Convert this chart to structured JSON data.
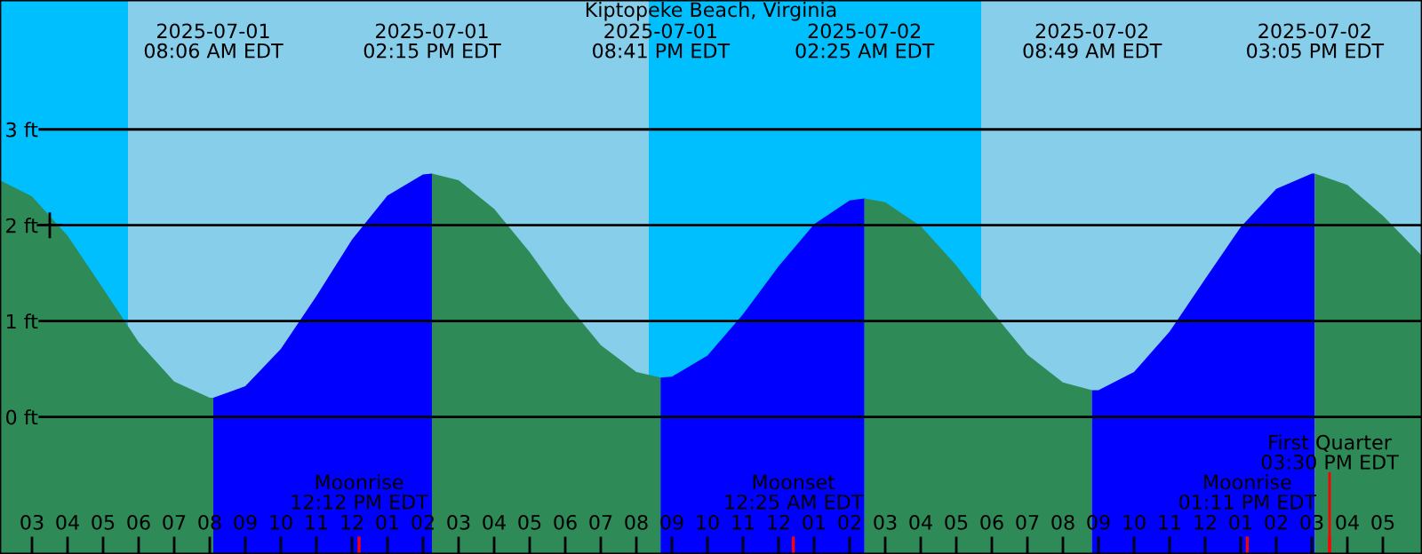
{
  "chart_data": {
    "type": "area",
    "title": "Kiptopeke Beach, Virginia",
    "xlim": [
      "2025-07-01T02:06",
      "2025-07-02T18:06"
    ],
    "ylim": [
      -1.43,
      4.35
    ],
    "xticks": [
      {
        "value": "2025-07-01T03:00",
        "label": "03"
      },
      {
        "value": "2025-07-01T04:00",
        "label": "04"
      },
      {
        "value": "2025-07-01T05:00",
        "label": "05"
      },
      {
        "value": "2025-07-01T06:00",
        "label": "06"
      },
      {
        "value": "2025-07-01T07:00",
        "label": "07"
      },
      {
        "value": "2025-07-01T08:00",
        "label": "08"
      },
      {
        "value": "2025-07-01T09:00",
        "label": "09"
      },
      {
        "value": "2025-07-01T10:00",
        "label": "10"
      },
      {
        "value": "2025-07-01T11:00",
        "label": "11"
      },
      {
        "value": "2025-07-01T12:00",
        "label": "12"
      },
      {
        "value": "2025-07-01T13:00",
        "label": "01"
      },
      {
        "value": "2025-07-01T14:00",
        "label": "02"
      },
      {
        "value": "2025-07-01T15:00",
        "label": "03"
      },
      {
        "value": "2025-07-01T16:00",
        "label": "04"
      },
      {
        "value": "2025-07-01T17:00",
        "label": "05"
      },
      {
        "value": "2025-07-01T18:00",
        "label": "06"
      },
      {
        "value": "2025-07-01T19:00",
        "label": "07"
      },
      {
        "value": "2025-07-01T20:00",
        "label": "08"
      },
      {
        "value": "2025-07-01T21:00",
        "label": "09"
      },
      {
        "value": "2025-07-01T22:00",
        "label": "10"
      },
      {
        "value": "2025-07-01T23:00",
        "label": "11"
      },
      {
        "value": "2025-07-02T00:00",
        "label": "12"
      },
      {
        "value": "2025-07-02T01:00",
        "label": "01"
      },
      {
        "value": "2025-07-02T02:00",
        "label": "02"
      },
      {
        "value": "2025-07-02T03:00",
        "label": "03"
      },
      {
        "value": "2025-07-02T04:00",
        "label": "04"
      },
      {
        "value": "2025-07-02T05:00",
        "label": "05"
      },
      {
        "value": "2025-07-02T06:00",
        "label": "06"
      },
      {
        "value": "2025-07-02T07:00",
        "label": "07"
      },
      {
        "value": "2025-07-02T08:00",
        "label": "08"
      },
      {
        "value": "2025-07-02T09:00",
        "label": "09"
      },
      {
        "value": "2025-07-02T10:00",
        "label": "10"
      },
      {
        "value": "2025-07-02T11:00",
        "label": "11"
      },
      {
        "value": "2025-07-02T12:00",
        "label": "12"
      },
      {
        "value": "2025-07-02T13:00",
        "label": "01"
      },
      {
        "value": "2025-07-02T14:00",
        "label": "02"
      },
      {
        "value": "2025-07-02T15:00",
        "label": "03"
      },
      {
        "value": "2025-07-02T16:00",
        "label": "04"
      },
      {
        "value": "2025-07-02T17:00",
        "label": "05"
      }
    ],
    "yticks": [
      {
        "value": 0,
        "label": "0 ft"
      },
      {
        "value": 1,
        "label": "1 ft"
      },
      {
        "value": 2,
        "label": "2 ft"
      },
      {
        "value": 3,
        "label": "3 ft"
      }
    ],
    "grid": "y",
    "bands": [
      {
        "axis": "x",
        "from": "2025-07-01T02:06",
        "to": "2025-07-01T05:42",
        "color": "#00bfff"
      },
      {
        "axis": "x",
        "from": "2025-07-01T05:42",
        "to": "2025-07-01T20:21",
        "color": "#87ceeb"
      },
      {
        "axis": "x",
        "from": "2025-07-01T20:21",
        "to": "2025-07-02T05:42",
        "color": "#00bfff"
      },
      {
        "axis": "x",
        "from": "2025-07-02T05:42",
        "to": "2025-07-02T18:06",
        "color": "#87ceeb"
      }
    ],
    "series": [
      {
        "color": "#2e8b57",
        "x": [
          "2025-07-01T02:06",
          "2025-07-01T03:00",
          "2025-07-01T04:00",
          "2025-07-01T05:00",
          "2025-07-01T06:00",
          "2025-07-01T07:00",
          "2025-07-01T08:00",
          "2025-07-01T08:06"
        ],
        "values": [
          2.47,
          2.3,
          1.89,
          1.34,
          0.78,
          0.37,
          0.2,
          0.2
        ]
      },
      {
        "color": "#0000ff",
        "x": [
          "2025-07-01T08:06",
          "2025-07-01T09:00",
          "2025-07-01T10:00",
          "2025-07-01T11:00",
          "2025-07-01T12:00",
          "2025-07-01T13:00",
          "2025-07-01T14:00",
          "2025-07-01T14:15"
        ],
        "values": [
          0.2,
          0.32,
          0.71,
          1.26,
          1.85,
          2.31,
          2.53,
          2.54
        ]
      },
      {
        "color": "#2e8b57",
        "x": [
          "2025-07-01T14:15",
          "2025-07-01T15:00",
          "2025-07-01T16:00",
          "2025-07-01T17:00",
          "2025-07-01T18:00",
          "2025-07-01T19:00",
          "2025-07-01T20:00",
          "2025-07-01T20:41"
        ],
        "values": [
          2.54,
          2.47,
          2.17,
          1.72,
          1.2,
          0.75,
          0.47,
          0.41
        ]
      },
      {
        "color": "#0000ff",
        "x": [
          "2025-07-01T20:41",
          "2025-07-01T21:00",
          "2025-07-01T22:00",
          "2025-07-01T23:00",
          "2025-07-02T00:00",
          "2025-07-02T01:00",
          "2025-07-02T02:00",
          "2025-07-02T02:25"
        ],
        "values": [
          0.41,
          0.42,
          0.64,
          1.07,
          1.57,
          2.01,
          2.26,
          2.28
        ]
      },
      {
        "color": "#2e8b57",
        "x": [
          "2025-07-02T02:25",
          "2025-07-02T03:00",
          "2025-07-02T04:00",
          "2025-07-02T05:00",
          "2025-07-02T06:00",
          "2025-07-02T07:00",
          "2025-07-02T08:00",
          "2025-07-02T08:49"
        ],
        "values": [
          2.28,
          2.24,
          1.99,
          1.58,
          1.1,
          0.65,
          0.36,
          0.28
        ]
      },
      {
        "color": "#0000ff",
        "x": [
          "2025-07-02T08:49",
          "2025-07-02T09:00",
          "2025-07-02T10:00",
          "2025-07-02T11:00",
          "2025-07-02T12:00",
          "2025-07-02T13:00",
          "2025-07-02T14:00",
          "2025-07-02T15:00",
          "2025-07-02T15:05"
        ],
        "values": [
          0.28,
          0.28,
          0.47,
          0.89,
          1.44,
          1.98,
          2.38,
          2.54,
          2.54
        ]
      },
      {
        "color": "#2e8b57",
        "x": [
          "2025-07-02T15:05",
          "2025-07-02T16:00",
          "2025-07-02T17:00",
          "2025-07-02T18:00",
          "2025-07-02T18:06"
        ],
        "values": [
          2.54,
          2.42,
          2.1,
          1.72,
          1.68
        ]
      },
      {
        "type": "scatter",
        "marker": "cross",
        "color": "#000000",
        "x": [
          "2025-07-01T03:30"
        ],
        "values": [
          2
        ]
      }
    ],
    "annotations": [
      "2025-07-01\n08:06 AM EDT",
      "2025-07-01\n02:15 PM EDT",
      "2025-07-01\n08:41 PM EDT",
      "2025-07-02\n02:25 AM EDT",
      "2025-07-02\n08:49 AM EDT",
      "2025-07-02\n03:05 PM EDT",
      {
        "text": "Moonrise\n12:12 PM EDT",
        "x": "2025-07-01T12:12",
        "y": -1.43
      },
      {
        "text": "Moonset\n12:25 AM EDT",
        "x": "2025-07-02T00:25",
        "y": -1.43
      },
      {
        "text": "Moonrise\n01:11 PM EDT",
        "x": "2025-07-02T13:11",
        "y": -1.43
      },
      {
        "text": "First Quarter\n03:30 PM EDT",
        "x": "2025-07-02T15:30",
        "y": -1.43
      }
    ]
  }
}
